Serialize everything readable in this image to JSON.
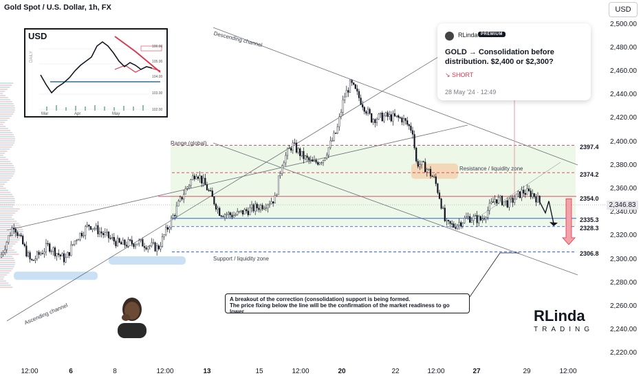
{
  "header": {
    "title": "Gold Spot / U.S. Dollar, 1h, FX"
  },
  "currency_button": "USD",
  "colors": {
    "up": "#26a69a",
    "down": "#ef5350",
    "candle": "#131722",
    "resistance": "#e0344c",
    "support": "#2962ff",
    "zone_green": "#e8f5e2",
    "zone_orange": "#f3c9a3",
    "zone_blue": "#bdd8f2"
  },
  "idea_card": {
    "author": "RLinda",
    "badge": "PREMIUM",
    "title": "GOLD → Consolidation before distribution. $2,400 or $2,300?",
    "direction": "SHORT",
    "date": "28 May '24 · 12:49"
  },
  "annotation": {
    "line1": "A breakout of the correction (consolidation) support is being formed.",
    "line2": "The price fixing below the line will be the confirmation of the market readiness to go lower"
  },
  "labels": {
    "descending_channel": "Descending channel",
    "ascending_channel": "Ascending channel",
    "range": "Range (global)",
    "resistance_zone": "Resistance / liquidity zone",
    "support_zone": "Support / liquidity zone"
  },
  "inset": {
    "title": "USD",
    "axis_label": "DAILY",
    "x_labels": [
      "Mar",
      "Apr",
      "May"
    ],
    "y_labels": [
      "106.00",
      "105.00",
      "104.00",
      "103.00",
      "102.00"
    ]
  },
  "logo": {
    "mark": "RLinda",
    "sub": "TRADING"
  },
  "chart_data": {
    "type": "candlestick",
    "symbol": "Gold Spot / U.S. Dollar",
    "timeframe": "1h",
    "y_ticks": [
      "2,500.00",
      "2,480.00",
      "2,460.00",
      "2,440.00",
      "2,420.00",
      "2,400.00",
      "2,380.00",
      "2,360.00",
      "2,340.00",
      "2,320.00",
      "2,300.00",
      "2,280.00",
      "2,260.00",
      "2,240.00",
      "2,220.00"
    ],
    "ylim": [
      2213,
      2515
    ],
    "x_ticks": [
      {
        "label": "12:00",
        "bold": false
      },
      {
        "label": "6",
        "bold": true
      },
      {
        "label": "8",
        "bold": false
      },
      {
        "label": "12:00",
        "bold": false
      },
      {
        "label": "13",
        "bold": true
      },
      {
        "label": "15",
        "bold": false
      },
      {
        "label": "12:00",
        "bold": false
      },
      {
        "label": "20",
        "bold": true
      },
      {
        "label": "22",
        "bold": false
      },
      {
        "label": "12:00",
        "bold": false
      },
      {
        "label": "27",
        "bold": true
      },
      {
        "label": "29",
        "bold": false
      },
      {
        "label": "12:00",
        "bold": false
      }
    ],
    "current_price": "2,346.83",
    "levels": [
      {
        "value": 2397.4,
        "label": "2397.4",
        "style": "dashed",
        "color": "#e0344c"
      },
      {
        "value": 2374.2,
        "label": "2374.2",
        "style": "dashed",
        "color": "#e0344c"
      },
      {
        "value": 2354.0,
        "label": "2354.0",
        "style": "solid",
        "color": "#e0344c"
      },
      {
        "value": 2335.3,
        "label": "2335.3",
        "style": "solid",
        "color": "#2962ff"
      },
      {
        "value": 2328.3,
        "label": "2328.3",
        "style": "dashed",
        "color": "#2962ff"
      },
      {
        "value": 2306.8,
        "label": "2306.8",
        "style": "dashed",
        "color": "#2962ff"
      }
    ],
    "price_path": [
      [
        0,
        2302
      ],
      [
        20,
        2330
      ],
      [
        45,
        2298
      ],
      [
        70,
        2312
      ],
      [
        95,
        2300
      ],
      [
        110,
        2318
      ],
      [
        130,
        2330
      ],
      [
        150,
        2322
      ],
      [
        175,
        2313
      ],
      [
        200,
        2315
      ],
      [
        230,
        2310
      ],
      [
        250,
        2335
      ],
      [
        268,
        2358
      ],
      [
        285,
        2375
      ],
      [
        300,
        2362
      ],
      [
        320,
        2340
      ],
      [
        340,
        2338
      ],
      [
        360,
        2342
      ],
      [
        380,
        2346
      ],
      [
        400,
        2352
      ],
      [
        410,
        2383
      ],
      [
        425,
        2398
      ],
      [
        440,
        2388
      ],
      [
        455,
        2382
      ],
      [
        470,
        2386
      ],
      [
        490,
        2410
      ],
      [
        500,
        2438
      ],
      [
        510,
        2450
      ],
      [
        520,
        2440
      ],
      [
        540,
        2420
      ],
      [
        560,
        2422
      ],
      [
        585,
        2420
      ],
      [
        600,
        2410
      ],
      [
        605,
        2383
      ],
      [
        620,
        2378
      ],
      [
        632,
        2368
      ],
      [
        640,
        2352
      ],
      [
        648,
        2330
      ],
      [
        660,
        2329
      ],
      [
        680,
        2336
      ],
      [
        700,
        2334
      ],
      [
        720,
        2352
      ],
      [
        740,
        2348
      ],
      [
        760,
        2358
      ],
      [
        775,
        2356
      ],
      [
        785,
        2349
      ]
    ],
    "forecast_path": [
      [
        785,
        2349
      ],
      [
        793,
        2340
      ],
      [
        798,
        2350
      ],
      [
        805,
        2331
      ]
    ]
  }
}
